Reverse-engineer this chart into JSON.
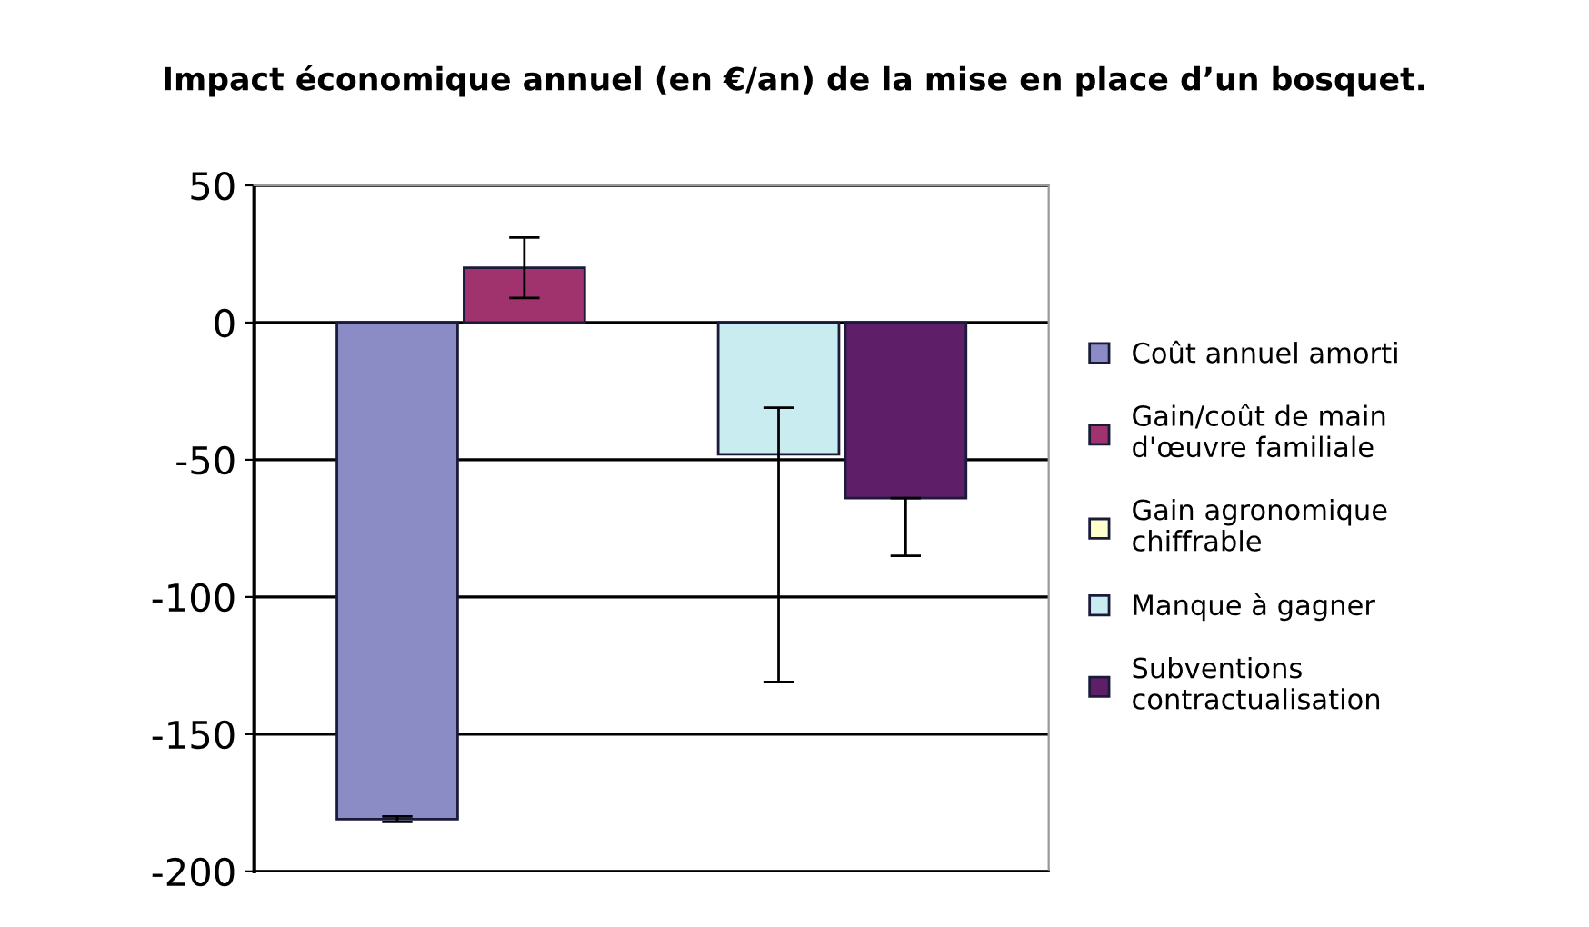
{
  "chart_data": {
    "type": "bar",
    "title": "Impact économique annuel (en €/an) de la mise en place d’un bosquet.",
    "categories": [
      null
    ],
    "series": [
      {
        "name": "Coût annuel amorti",
        "color": "#8b8bc6",
        "values": [
          -181
        ],
        "errors": [
          [
            -182,
            -180
          ]
        ]
      },
      {
        "name": "Gain/coût de main d'œuvre familiale",
        "color": "#a0336e",
        "values": [
          20
        ],
        "errors": [
          [
            9,
            31
          ]
        ]
      },
      {
        "name": "Gain agronomique chiffrable",
        "color": "#ffffcc",
        "values": [
          null
        ]
      },
      {
        "name": "Manque à gagner",
        "color": "#c8ecf0",
        "values": [
          -48
        ],
        "errors": [
          [
            -131,
            -31
          ]
        ]
      },
      {
        "name": "Subventions contractualisation",
        "color": "#5f1f68",
        "values": [
          -64
        ],
        "errors": [
          [
            -85,
            -64
          ]
        ]
      }
    ],
    "ylim": [
      -200,
      50
    ],
    "yticks": [
      -200,
      -150,
      -100,
      -50,
      0,
      50
    ],
    "grid": "y",
    "legend": "right",
    "tick_labels": "y"
  }
}
